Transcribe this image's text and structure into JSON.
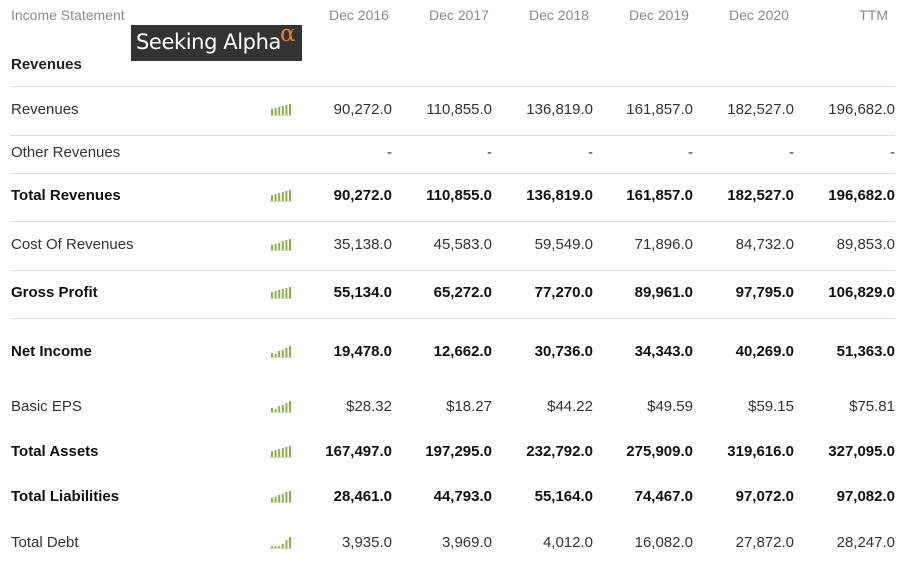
{
  "header": {
    "title": "Income Statement",
    "columns": [
      "Dec 2016",
      "Dec 2017",
      "Dec 2018",
      "Dec 2019",
      "Dec 2020",
      "TTM"
    ]
  },
  "logo": {
    "text": "Seeking Alpha",
    "symbol": "α",
    "background": "#333333",
    "accent": "#f07d2e"
  },
  "section": {
    "title": "Revenues"
  },
  "sparkline_color": "#8bb04c",
  "rows": [
    {
      "label": "Revenues",
      "bold": false,
      "chart_icon": "bar-chart-icon",
      "values": [
        "90,272.0",
        "110,855.0",
        "136,819.0",
        "161,857.0",
        "182,527.0",
        "196,682.0"
      ]
    },
    {
      "label": "Other Revenues",
      "bold": false,
      "chart_icon": "",
      "values": [
        "-",
        "-",
        "-",
        "-",
        "-",
        "-"
      ]
    },
    {
      "label": "Total Revenues",
      "bold": true,
      "chart_icon": "bar-chart-icon",
      "values": [
        "90,272.0",
        "110,855.0",
        "136,819.0",
        "161,857.0",
        "182,527.0",
        "196,682.0"
      ]
    },
    {
      "label": "Cost Of Revenues",
      "bold": false,
      "chart_icon": "bar-chart-icon",
      "values": [
        "35,138.0",
        "45,583.0",
        "59,549.0",
        "71,896.0",
        "84,732.0",
        "89,853.0"
      ]
    },
    {
      "label": "Gross Profit",
      "bold": true,
      "chart_icon": "bar-chart-icon",
      "values": [
        "55,134.0",
        "65,272.0",
        "77,270.0",
        "89,961.0",
        "97,795.0",
        "106,829.0"
      ]
    },
    {
      "label": "Net Income",
      "bold": true,
      "chart_icon": "bar-chart-icon",
      "values": [
        "19,478.0",
        "12,662.0",
        "30,736.0",
        "34,343.0",
        "40,269.0",
        "51,363.0"
      ]
    },
    {
      "label": "Basic EPS",
      "bold": false,
      "chart_icon": "bar-chart-icon",
      "values": [
        "$28.32",
        "$18.27",
        "$44.22",
        "$49.59",
        "$59.15",
        "$75.81"
      ]
    },
    {
      "label": "Total Assets",
      "bold": true,
      "chart_icon": "bar-chart-icon",
      "values": [
        "167,497.0",
        "197,295.0",
        "232,792.0",
        "275,909.0",
        "319,616.0",
        "327,095.0"
      ]
    },
    {
      "label": "Total Liabilities",
      "bold": true,
      "chart_icon": "bar-chart-icon",
      "values": [
        "28,461.0",
        "44,793.0",
        "55,164.0",
        "74,467.0",
        "97,072.0",
        "97,082.0"
      ]
    },
    {
      "label": "Total Debt",
      "bold": false,
      "chart_icon": "bar-chart-icon",
      "values": [
        "3,935.0",
        "3,969.0",
        "4,012.0",
        "16,082.0",
        "27,872.0",
        "28,247.0"
      ]
    }
  ]
}
